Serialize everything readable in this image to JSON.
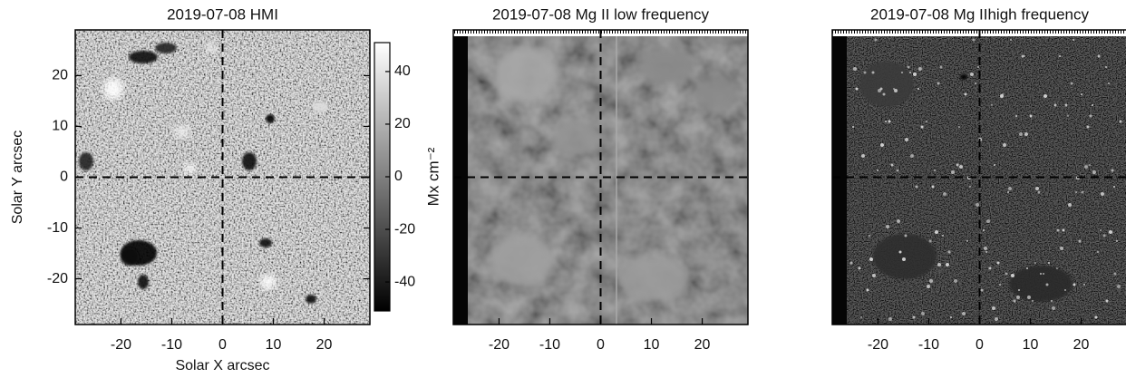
{
  "chart_data": [
    {
      "type": "image",
      "title": "2019-07-08 HMI",
      "xlabel": "Solar X arcsec",
      "ylabel": "Solar Y arcsec",
      "xlim": [
        -29,
        29
      ],
      "ylim": [
        -29,
        29
      ],
      "xticks": [
        -20,
        -10,
        0,
        10,
        20
      ],
      "yticks": [
        -20,
        -10,
        0,
        10,
        20
      ],
      "crosshair": {
        "x": 0,
        "y": 0
      },
      "colorbar": {
        "label": "Mx cm⁻²",
        "lim": [
          -51,
          51
        ],
        "ticks": [
          -40,
          -20,
          0,
          20,
          40
        ]
      }
    },
    {
      "type": "image",
      "title": "2019-07-08 Mg II low frequency",
      "xlim": [
        -29,
        29
      ],
      "ylim": [
        -29,
        29
      ],
      "xticks": [
        -20,
        -10,
        0,
        10,
        20
      ],
      "crosshair": {
        "x": 0,
        "y": 0
      }
    },
    {
      "type": "image",
      "title": "2019-07-08 Mg IIhigh frequency",
      "xlim": [
        -29,
        29
      ],
      "ylim": [
        -29,
        29
      ],
      "xticks": [
        -20,
        -10,
        0,
        10,
        20
      ],
      "crosshair": {
        "x": 0,
        "y": 0
      }
    }
  ]
}
